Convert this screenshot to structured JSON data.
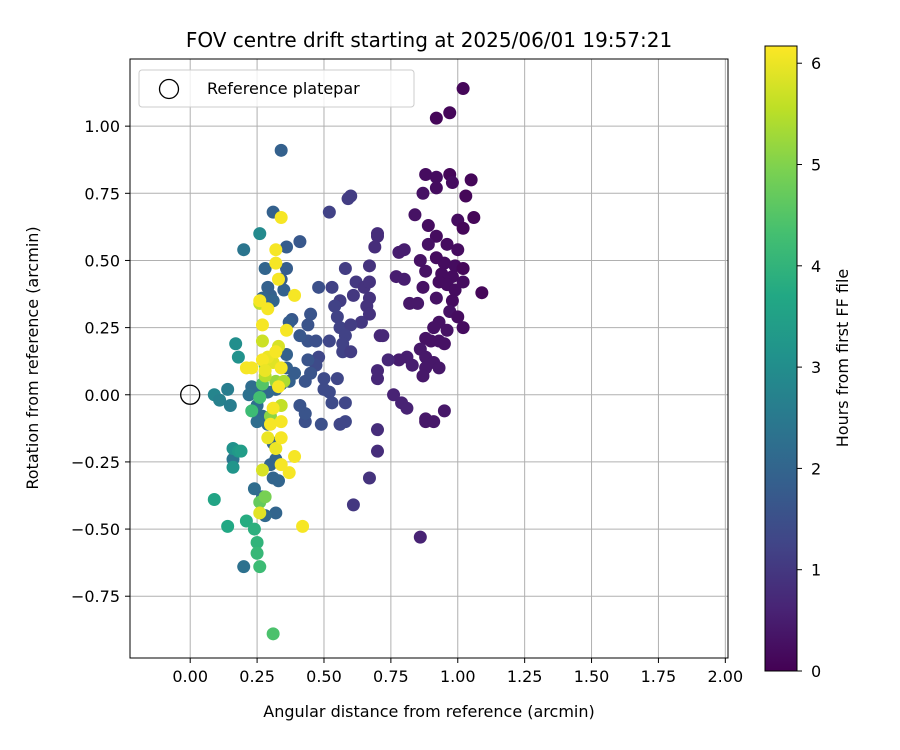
{
  "chart_data": {
    "type": "scatter",
    "title": "FOV centre drift starting at 2025/06/01 19:57:21",
    "xlabel": "Angular distance from reference (arcmin)",
    "ylabel": "Rotation from reference (arcmin)",
    "xlim": [
      -0.225,
      2.01
    ],
    "ylim": [
      -0.98,
      1.25
    ],
    "xticks": [
      0.0,
      0.25,
      0.5,
      0.75,
      1.0,
      1.25,
      1.5,
      1.75,
      2.0
    ],
    "xtick_labels": [
      "0.00",
      "0.25",
      "0.50",
      "0.75",
      "1.00",
      "1.25",
      "1.50",
      "1.75",
      "2.00"
    ],
    "yticks": [
      -0.75,
      -0.5,
      -0.25,
      0.0,
      0.25,
      0.5,
      0.75,
      1.0
    ],
    "ytick_labels": [
      "−0.75",
      "−0.50",
      "−0.25",
      "0.00",
      "0.25",
      "0.50",
      "0.75",
      "1.00"
    ],
    "grid": true,
    "legend": {
      "placement": "upper-left",
      "entries": [
        "Reference platepar"
      ]
    },
    "reference_point": {
      "x": 0.0,
      "y": 0.0,
      "marker": "open-circle"
    },
    "colorbar": {
      "label": "Hours from first FF file",
      "range": [
        0,
        6.17
      ],
      "ticks": [
        0,
        1,
        2,
        3,
        4,
        5,
        6
      ],
      "tick_labels": [
        "0",
        "1",
        "2",
        "3",
        "4",
        "5",
        "6"
      ],
      "colormap": "viridis"
    },
    "series": [
      {
        "points": [
          [
            1.02,
            1.14,
            0.1
          ],
          [
            0.97,
            1.05,
            0.1
          ],
          [
            0.92,
            1.03,
            0.1
          ],
          [
            1.05,
            0.8,
            0.1
          ],
          [
            0.88,
            0.82,
            0.2
          ],
          [
            0.92,
            0.81,
            0.2
          ],
          [
            0.97,
            0.82,
            0.1
          ],
          [
            0.98,
            0.79,
            0.2
          ],
          [
            0.92,
            0.77,
            0.2
          ],
          [
            0.87,
            0.75,
            0.3
          ],
          [
            1.03,
            0.74,
            0.1
          ],
          [
            1.06,
            0.66,
            0.1
          ],
          [
            1.0,
            0.65,
            0.2
          ],
          [
            0.89,
            0.63,
            0.2
          ],
          [
            0.84,
            0.67,
            0.3
          ],
          [
            1.02,
            0.62,
            0.1
          ],
          [
            0.92,
            0.59,
            0.2
          ],
          [
            0.96,
            0.56,
            0.2
          ],
          [
            0.89,
            0.56,
            0.3
          ],
          [
            1.0,
            0.54,
            0.2
          ],
          [
            0.78,
            0.53,
            0.5
          ],
          [
            0.8,
            0.54,
            0.5
          ],
          [
            0.86,
            0.5,
            0.3
          ],
          [
            0.92,
            0.51,
            0.2
          ],
          [
            0.95,
            0.49,
            0.2
          ],
          [
            0.99,
            0.48,
            0.2
          ],
          [
            1.02,
            0.47,
            0.1
          ],
          [
            0.88,
            0.46,
            0.3
          ],
          [
            0.94,
            0.45,
            0.2
          ],
          [
            0.98,
            0.44,
            0.2
          ],
          [
            0.93,
            0.42,
            0.2
          ],
          [
            0.96,
            0.41,
            0.2
          ],
          [
            1.02,
            0.42,
            0.2
          ],
          [
            0.77,
            0.44,
            0.5
          ],
          [
            0.8,
            0.43,
            0.5
          ],
          [
            0.87,
            0.4,
            0.3
          ],
          [
            0.99,
            0.39,
            0.2
          ],
          [
            1.09,
            0.38,
            0.1
          ],
          [
            0.92,
            0.36,
            0.3
          ],
          [
            0.98,
            0.35,
            0.2
          ],
          [
            0.82,
            0.34,
            0.4
          ],
          [
            0.85,
            0.34,
            0.4
          ],
          [
            0.97,
            0.31,
            0.3
          ],
          [
            1.0,
            0.29,
            0.2
          ],
          [
            0.93,
            0.27,
            0.3
          ],
          [
            0.91,
            0.25,
            0.3
          ],
          [
            0.96,
            0.24,
            0.3
          ],
          [
            1.02,
            0.25,
            0.2
          ],
          [
            0.88,
            0.21,
            0.3
          ],
          [
            0.9,
            0.2,
            0.3
          ],
          [
            0.93,
            0.2,
            0.3
          ],
          [
            0.95,
            0.19,
            0.3
          ],
          [
            0.86,
            0.17,
            0.4
          ],
          [
            0.88,
            0.14,
            0.4
          ],
          [
            0.91,
            0.12,
            0.4
          ],
          [
            0.88,
            0.1,
            0.4
          ],
          [
            0.93,
            0.1,
            0.4
          ],
          [
            0.81,
            0.14,
            0.5
          ],
          [
            0.78,
            0.13,
            0.5
          ],
          [
            0.83,
            0.11,
            0.5
          ],
          [
            0.87,
            0.07,
            0.4
          ],
          [
            0.76,
            -0.0,
            0.6
          ],
          [
            0.79,
            -0.03,
            0.6
          ],
          [
            0.81,
            -0.05,
            0.6
          ],
          [
            0.95,
            -0.06,
            0.4
          ],
          [
            0.88,
            -0.09,
            0.4
          ],
          [
            0.88,
            -0.1,
            0.4
          ],
          [
            0.91,
            -0.1,
            0.4
          ],
          [
            0.86,
            -0.53,
            0.6
          ],
          [
            0.74,
            0.13,
            0.7
          ],
          [
            0.7,
            0.06,
            0.7
          ],
          [
            0.7,
            0.09,
            0.7
          ],
          [
            0.71,
            0.22,
            0.7
          ],
          [
            0.72,
            0.22,
            0.7
          ],
          [
            0.7,
            0.59,
            0.8
          ],
          [
            0.7,
            0.6,
            0.8
          ],
          [
            0.69,
            0.55,
            0.8
          ],
          [
            0.67,
            0.48,
            0.9
          ],
          [
            0.62,
            0.42,
            1.0
          ],
          [
            0.65,
            0.4,
            0.9
          ],
          [
            0.67,
            0.42,
            0.9
          ],
          [
            0.61,
            0.37,
            1.0
          ],
          [
            0.67,
            0.36,
            0.9
          ],
          [
            0.66,
            0.33,
            0.9
          ],
          [
            0.64,
            0.27,
            1.0
          ],
          [
            0.67,
            0.3,
            0.9
          ],
          [
            0.6,
            0.74,
            1.1
          ],
          [
            0.59,
            0.73,
            1.1
          ],
          [
            0.52,
            0.68,
            1.2
          ],
          [
            0.58,
            0.47,
            1.1
          ],
          [
            0.56,
            0.35,
            1.1
          ],
          [
            0.53,
            0.4,
            1.2
          ],
          [
            0.54,
            0.33,
            1.2
          ],
          [
            0.55,
            0.29,
            1.2
          ],
          [
            0.56,
            0.25,
            1.2
          ],
          [
            0.6,
            0.26,
            1.1
          ],
          [
            0.58,
            0.22,
            1.2
          ],
          [
            0.57,
            0.19,
            1.2
          ],
          [
            0.57,
            0.16,
            1.2
          ],
          [
            0.6,
            0.16,
            1.1
          ],
          [
            0.52,
            0.2,
            1.3
          ],
          [
            0.48,
            0.14,
            1.3
          ],
          [
            0.47,
            0.11,
            1.4
          ],
          [
            0.5,
            0.06,
            1.4
          ],
          [
            0.55,
            0.06,
            1.3
          ],
          [
            0.52,
            0.01,
            1.4
          ],
          [
            0.5,
            0.02,
            1.4
          ],
          [
            0.53,
            -0.03,
            1.4
          ],
          [
            0.58,
            -0.03,
            1.3
          ],
          [
            0.58,
            -0.1,
            1.3
          ],
          [
            0.56,
            -0.11,
            1.3
          ],
          [
            0.49,
            -0.11,
            1.5
          ],
          [
            0.43,
            -0.1,
            1.5
          ],
          [
            0.43,
            -0.07,
            1.6
          ],
          [
            0.41,
            -0.04,
            1.6
          ],
          [
            0.43,
            0.05,
            1.6
          ],
          [
            0.45,
            0.08,
            1.6
          ],
          [
            0.44,
            0.13,
            1.6
          ],
          [
            0.44,
            0.2,
            1.6
          ],
          [
            0.47,
            0.2,
            1.5
          ],
          [
            0.41,
            0.22,
            1.7
          ],
          [
            0.44,
            0.26,
            1.6
          ],
          [
            0.45,
            0.3,
            1.6
          ],
          [
            0.38,
            0.28,
            1.7
          ],
          [
            0.37,
            0.27,
            1.8
          ],
          [
            0.48,
            0.4,
            1.5
          ],
          [
            0.41,
            0.57,
            1.7
          ],
          [
            0.36,
            0.55,
            1.8
          ],
          [
            0.36,
            0.47,
            1.8
          ],
          [
            0.34,
            0.43,
            1.8
          ],
          [
            0.35,
            0.39,
            1.9
          ],
          [
            0.3,
            0.37,
            1.9
          ],
          [
            0.29,
            0.4,
            1.9
          ],
          [
            0.31,
            0.35,
            2.0
          ],
          [
            0.27,
            0.36,
            2.0
          ],
          [
            0.28,
            0.47,
            2.0
          ],
          [
            0.31,
            0.68,
            1.9
          ],
          [
            0.34,
            0.91,
            1.9
          ],
          [
            0.7,
            -0.13,
            0.8
          ],
          [
            0.7,
            -0.21,
            0.8
          ],
          [
            0.67,
            -0.31,
            0.9
          ],
          [
            0.61,
            -0.41,
            1.0
          ],
          [
            0.36,
            0.15,
            1.9
          ],
          [
            0.36,
            0.1,
            1.9
          ],
          [
            0.37,
            0.05,
            1.9
          ],
          [
            0.39,
            0.08,
            1.8
          ],
          [
            0.34,
            0.04,
            2.0
          ],
          [
            0.32,
            0.02,
            2.0
          ],
          [
            0.29,
            0.01,
            2.1
          ],
          [
            0.25,
            0.01,
            2.2
          ],
          [
            0.23,
            0.03,
            2.2
          ],
          [
            0.22,
            0.0,
            2.3
          ],
          [
            0.25,
            -0.04,
            2.2
          ],
          [
            0.27,
            -0.08,
            2.1
          ],
          [
            0.29,
            -0.11,
            2.1
          ],
          [
            0.25,
            -0.1,
            2.2
          ],
          [
            0.31,
            -0.18,
            2.0
          ],
          [
            0.32,
            -0.24,
            2.0
          ],
          [
            0.3,
            -0.26,
            2.0
          ],
          [
            0.31,
            -0.31,
            2.0
          ],
          [
            0.33,
            -0.32,
            2.0
          ],
          [
            0.24,
            -0.35,
            2.2
          ],
          [
            0.27,
            -0.38,
            2.1
          ],
          [
            0.32,
            -0.44,
            2.0
          ],
          [
            0.28,
            -0.45,
            2.1
          ],
          [
            0.16,
            -0.24,
            2.4
          ],
          [
            0.2,
            -0.64,
            2.3
          ],
          [
            0.2,
            0.54,
            2.4
          ],
          [
            0.14,
            0.02,
            2.6
          ],
          [
            0.09,
            0.0,
            2.8
          ],
          [
            0.11,
            -0.02,
            2.7
          ],
          [
            0.15,
            -0.04,
            2.6
          ],
          [
            0.26,
            0.6,
            2.9
          ],
          [
            0.17,
            0.19,
            3.0
          ],
          [
            0.18,
            0.14,
            3.1
          ],
          [
            0.16,
            -0.2,
            3.1
          ],
          [
            0.16,
            -0.27,
            3.2
          ],
          [
            0.18,
            -0.21,
            3.3
          ],
          [
            0.19,
            -0.21,
            3.4
          ],
          [
            0.09,
            -0.39,
            3.6
          ],
          [
            0.14,
            -0.49,
            3.7
          ],
          [
            0.21,
            -0.47,
            3.8
          ],
          [
            0.24,
            -0.5,
            3.9
          ],
          [
            0.25,
            -0.55,
            4.0
          ],
          [
            0.25,
            -0.59,
            4.1
          ],
          [
            0.26,
            -0.64,
            4.2
          ],
          [
            0.31,
            -0.89,
            4.4
          ],
          [
            0.23,
            -0.06,
            4.2
          ],
          [
            0.26,
            -0.01,
            4.3
          ],
          [
            0.27,
            0.04,
            4.5
          ],
          [
            0.28,
            0.11,
            4.6
          ],
          [
            0.26,
            -0.4,
            4.7
          ],
          [
            0.28,
            -0.38,
            4.9
          ],
          [
            0.3,
            -0.08,
            5.1
          ],
          [
            0.32,
            0.05,
            5.2
          ],
          [
            0.35,
            0.05,
            5.4
          ],
          [
            0.34,
            -0.04,
            5.6
          ],
          [
            0.28,
            0.07,
            5.5
          ],
          [
            0.26,
            0.34,
            5.6
          ],
          [
            0.27,
            0.2,
            5.7
          ],
          [
            0.33,
            0.18,
            5.8
          ],
          [
            0.31,
            0.12,
            5.9
          ],
          [
            0.29,
            0.14,
            6.0
          ],
          [
            0.27,
            -0.28,
            5.8
          ],
          [
            0.26,
            -0.44,
            5.9
          ],
          [
            0.29,
            -0.16,
            6.0
          ],
          [
            0.32,
            -0.2,
            6.0
          ],
          [
            0.34,
            -0.1,
            6.1
          ],
          [
            0.31,
            -0.05,
            6.1
          ],
          [
            0.3,
            -0.11,
            6.1
          ],
          [
            0.34,
            -0.16,
            6.1
          ],
          [
            0.39,
            -0.23,
            6.1
          ],
          [
            0.37,
            -0.29,
            6.1
          ],
          [
            0.34,
            -0.26,
            6.1
          ],
          [
            0.42,
            -0.49,
            6.1
          ],
          [
            0.21,
            0.1,
            6.1
          ],
          [
            0.23,
            0.1,
            6.1
          ],
          [
            0.27,
            0.13,
            6.1
          ],
          [
            0.28,
            0.09,
            6.0
          ],
          [
            0.33,
            0.03,
            6.1
          ],
          [
            0.34,
            0.1,
            6.1
          ],
          [
            0.32,
            0.16,
            6.1
          ],
          [
            0.36,
            0.24,
            6.1
          ],
          [
            0.27,
            0.26,
            6.1
          ],
          [
            0.29,
            0.32,
            6.1
          ],
          [
            0.26,
            0.35,
            6.1
          ],
          [
            0.39,
            0.37,
            6.1
          ],
          [
            0.33,
            0.43,
            6.1
          ],
          [
            0.32,
            0.49,
            6.1
          ],
          [
            0.32,
            0.54,
            6.1
          ],
          [
            0.34,
            0.66,
            6.1
          ]
        ]
      }
    ]
  }
}
